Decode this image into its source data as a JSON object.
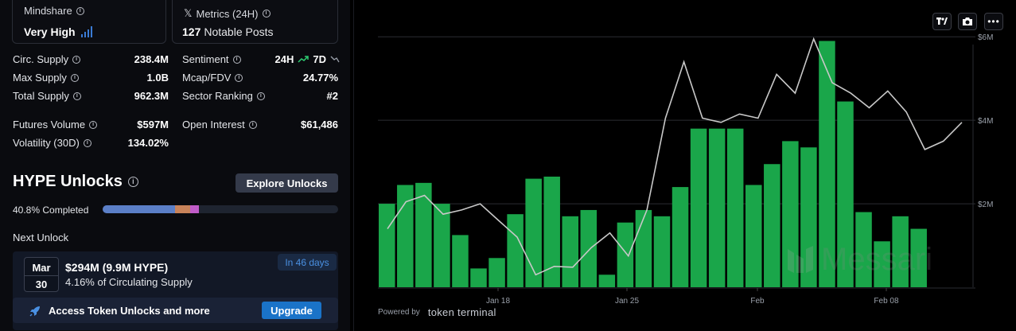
{
  "mindshare": {
    "title": "Mindshare",
    "value": "Very High"
  },
  "x_metrics": {
    "title": "Metrics (24H)",
    "count": "127",
    "suffix": "Notable Posts"
  },
  "stats_left": [
    {
      "label": "Circ. Supply",
      "value": "238.4M"
    },
    {
      "label": "Max Supply",
      "value": "1.0B"
    },
    {
      "label": "Total Supply",
      "value": "962.3M"
    },
    {
      "label": "Futures Volume",
      "value": "$597M"
    },
    {
      "label": "Volatility (30D)",
      "value": "134.02%"
    }
  ],
  "stats_right": [
    {
      "label": "Sentiment",
      "value": ""
    },
    {
      "label": "Mcap/FDV",
      "value": "24.77%"
    },
    {
      "label": "Sector Ranking",
      "value": "#2"
    },
    {
      "label": "Open Interest",
      "value": "$61,486"
    }
  ],
  "sentiment": {
    "short": "24H",
    "long": "7D",
    "short_trend": "up",
    "long_trend": "down",
    "up_color": "#2ecc71",
    "down_color": "#9aa0aa"
  },
  "unlocks": {
    "title": "HYPE Unlocks",
    "explore_label": "Explore Unlocks",
    "progress_label": "40.8% Completed",
    "progress": 0.408,
    "segment_colors": [
      "#5b7fc7",
      "#c8835a",
      "#c05cc8"
    ],
    "next_label": "Next Unlock",
    "next": {
      "month": "Mar",
      "day": "30",
      "amount": "$294M (9.9M HYPE)",
      "pct": "4.16% of Circulating Supply",
      "badge": "In 46 days"
    },
    "access_text": "Access Token Unlocks and more",
    "upgrade_label": "Upgrade"
  },
  "chart_data": {
    "type": "bar",
    "x_tick_labels": [
      "Jan 18",
      "Jan 25",
      "Feb",
      "Feb 08"
    ],
    "y_tick_labels": [
      "$2M",
      "$4M",
      "$6M"
    ],
    "ylim": [
      0,
      6500000
    ],
    "series": [
      {
        "type": "bar",
        "color": "#1aa64a",
        "values": [
          2000000,
          2450000,
          2500000,
          2000000,
          1250000,
          450000,
          700000,
          1750000,
          2600000,
          2650000,
          1700000,
          1850000,
          300000,
          1550000,
          1850000,
          1700000,
          2400000,
          3800000,
          3800000,
          3800000,
          2450000,
          2950000,
          3500000,
          3350000,
          5900000,
          4450000,
          1800000,
          1100000,
          1700000,
          1400000
        ]
      },
      {
        "type": "line",
        "color": "#c8c8c8",
        "values": [
          1400000,
          2050000,
          2200000,
          1750000,
          1850000,
          2000000,
          1600000,
          1200000,
          300000,
          500000,
          480000,
          950000,
          1300000,
          750000,
          1850000,
          4050000,
          5400000,
          4050000,
          3950000,
          4150000,
          4050000,
          5100000,
          4650000,
          5950000,
          4900000,
          4650000,
          4300000,
          4700000,
          4200000,
          3300000,
          3500000,
          3950000
        ]
      }
    ]
  },
  "branding": {
    "powered_by": "Powered by",
    "source": "token terminal",
    "watermark": "Messari"
  }
}
